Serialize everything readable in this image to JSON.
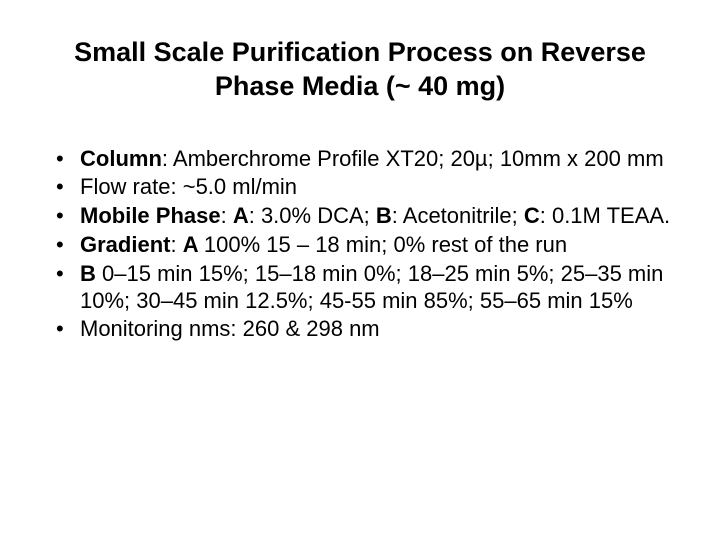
{
  "title": "Small Scale Purification Process on Reverse Phase Media (~ 40 mg)",
  "bullets": [
    {
      "label": "Column",
      "labelSuffix": ": ",
      "text": "Amberchrome Profile XT20; 20µ; 10mm x 200 mm",
      "boldLabel": true
    },
    {
      "label": "Flow rate",
      "labelSuffix": ": ",
      "text": "~5.0 ml/min",
      "boldLabel": false
    },
    {
      "label": "Mobile Phase",
      "labelSuffix": ": ",
      "rich": [
        {
          "t": "A",
          "b": true
        },
        {
          "t": ": 3.0% DCA; ",
          "b": false
        },
        {
          "t": "B",
          "b": true
        },
        {
          "t": ": Acetonitrile; ",
          "b": false
        },
        {
          "t": "C",
          "b": true
        },
        {
          "t": ": 0.1M TEAA.",
          "b": false
        }
      ],
      "boldLabel": true
    },
    {
      "label": "Gradient",
      "labelSuffix": ": ",
      "rich": [
        {
          "t": "A ",
          "b": true
        },
        {
          "t": "100% 15 – 18 min; 0% rest of the run",
          "b": false
        }
      ],
      "boldLabel": true
    },
    {
      "label": "B",
      "labelSuffix": " ",
      "text": "0–15 min 15%; 15–18 min 0%; 18–25 min 5%; 25–35 min 10%; 30–45 min 12.5%; 45-55 min 85%; 55–65 min 15%",
      "boldLabel": true
    },
    {
      "label": "Monitoring nms:",
      "labelSuffix": "   ",
      "text": "260 & 298 nm",
      "boldLabel": false
    }
  ],
  "style": {
    "background": "#ffffff",
    "textColor": "#000000",
    "titleFontSize": 27,
    "bodyFontSize": 22
  }
}
